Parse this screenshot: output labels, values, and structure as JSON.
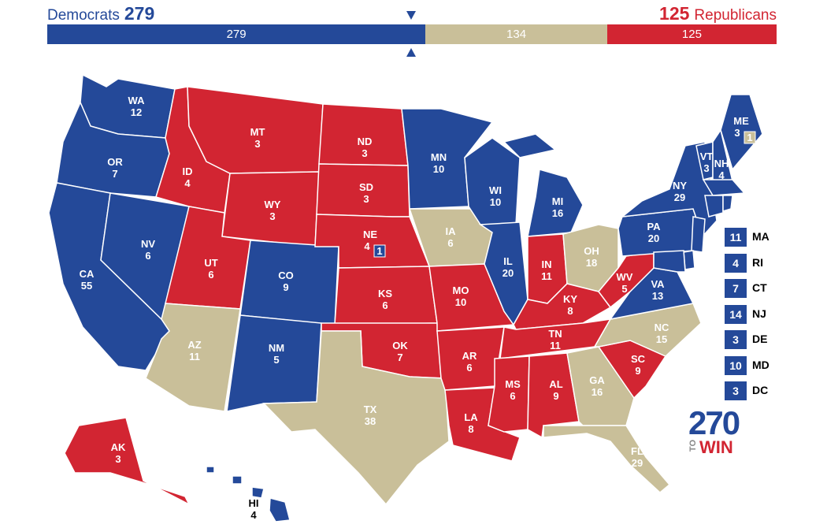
{
  "header": {
    "dem_label": "Democrats",
    "dem_total": "279",
    "rep_total": "125",
    "rep_label": "Republicans"
  },
  "bar": {
    "segments": [
      {
        "party": "dem",
        "label": "279",
        "fraction": 0.5186
      },
      {
        "party": "tossup",
        "label": "134",
        "fraction": 0.2491
      },
      {
        "party": "rep",
        "label": "125",
        "fraction": 0.2323
      }
    ]
  },
  "colors": {
    "dem": "#244999",
    "rep": "#d22532",
    "tossup": "#c9bf99"
  },
  "states": {
    "WA": {
      "name": "WA",
      "ev": "12",
      "party": "dem"
    },
    "OR": {
      "name": "OR",
      "ev": "7",
      "party": "dem"
    },
    "CA": {
      "name": "CA",
      "ev": "55",
      "party": "dem"
    },
    "NV": {
      "name": "NV",
      "ev": "6",
      "party": "dem"
    },
    "ID": {
      "name": "ID",
      "ev": "4",
      "party": "rep"
    },
    "MT": {
      "name": "MT",
      "ev": "3",
      "party": "rep"
    },
    "WY": {
      "name": "WY",
      "ev": "3",
      "party": "rep"
    },
    "UT": {
      "name": "UT",
      "ev": "6",
      "party": "rep"
    },
    "AZ": {
      "name": "AZ",
      "ev": "11",
      "party": "tossup"
    },
    "CO": {
      "name": "CO",
      "ev": "9",
      "party": "dem"
    },
    "NM": {
      "name": "NM",
      "ev": "5",
      "party": "dem"
    },
    "ND": {
      "name": "ND",
      "ev": "3",
      "party": "rep"
    },
    "SD": {
      "name": "SD",
      "ev": "3",
      "party": "rep"
    },
    "NE": {
      "name": "NE",
      "ev": "4",
      "party": "rep",
      "extra": "1"
    },
    "KS": {
      "name": "KS",
      "ev": "6",
      "party": "rep"
    },
    "OK": {
      "name": "OK",
      "ev": "7",
      "party": "rep"
    },
    "TX": {
      "name": "TX",
      "ev": "38",
      "party": "tossup"
    },
    "MN": {
      "name": "MN",
      "ev": "10",
      "party": "dem"
    },
    "IA": {
      "name": "IA",
      "ev": "6",
      "party": "tossup"
    },
    "MO": {
      "name": "MO",
      "ev": "10",
      "party": "rep"
    },
    "AR": {
      "name": "AR",
      "ev": "6",
      "party": "rep"
    },
    "LA": {
      "name": "LA",
      "ev": "8",
      "party": "rep"
    },
    "WI": {
      "name": "WI",
      "ev": "10",
      "party": "dem"
    },
    "IL": {
      "name": "IL",
      "ev": "20",
      "party": "dem"
    },
    "MI": {
      "name": "MI",
      "ev": "16",
      "party": "dem"
    },
    "IN": {
      "name": "IN",
      "ev": "11",
      "party": "rep"
    },
    "OH": {
      "name": "OH",
      "ev": "18",
      "party": "tossup"
    },
    "KY": {
      "name": "KY",
      "ev": "8",
      "party": "rep"
    },
    "TN": {
      "name": "TN",
      "ev": "11",
      "party": "rep"
    },
    "MS": {
      "name": "MS",
      "ev": "6",
      "party": "rep"
    },
    "AL": {
      "name": "AL",
      "ev": "9",
      "party": "rep"
    },
    "GA": {
      "name": "GA",
      "ev": "16",
      "party": "tossup"
    },
    "FL": {
      "name": "FL",
      "ev": "29",
      "party": "tossup"
    },
    "SC": {
      "name": "SC",
      "ev": "9",
      "party": "rep"
    },
    "NC": {
      "name": "NC",
      "ev": "15",
      "party": "tossup"
    },
    "VA": {
      "name": "VA",
      "ev": "13",
      "party": "dem"
    },
    "WV": {
      "name": "WV",
      "ev": "5",
      "party": "rep"
    },
    "PA": {
      "name": "PA",
      "ev": "20",
      "party": "dem"
    },
    "NY": {
      "name": "NY",
      "ev": "29",
      "party": "dem"
    },
    "VT": {
      "name": "VT",
      "ev": "3",
      "party": "dem"
    },
    "NH": {
      "name": "NH",
      "ev": "4",
      "party": "dem"
    },
    "ME": {
      "name": "ME",
      "ev": "3",
      "party": "dem",
      "extra": "1"
    },
    "AK": {
      "name": "AK",
      "ev": "3",
      "party": "rep"
    },
    "HI": {
      "name": "HI",
      "ev": "4",
      "party": "dem"
    }
  },
  "northeast_boxes": [
    {
      "name": "MA",
      "ev": "11",
      "party": "dem"
    },
    {
      "name": "RI",
      "ev": "4",
      "party": "dem"
    },
    {
      "name": "CT",
      "ev": "7",
      "party": "dem"
    },
    {
      "name": "NJ",
      "ev": "14",
      "party": "dem"
    },
    {
      "name": "DE",
      "ev": "3",
      "party": "dem"
    },
    {
      "name": "MD",
      "ev": "10",
      "party": "dem"
    },
    {
      "name": "DC",
      "ev": "3",
      "party": "dem"
    }
  ],
  "logo": {
    "number": "270",
    "to": "TO",
    "win": "WIN"
  }
}
